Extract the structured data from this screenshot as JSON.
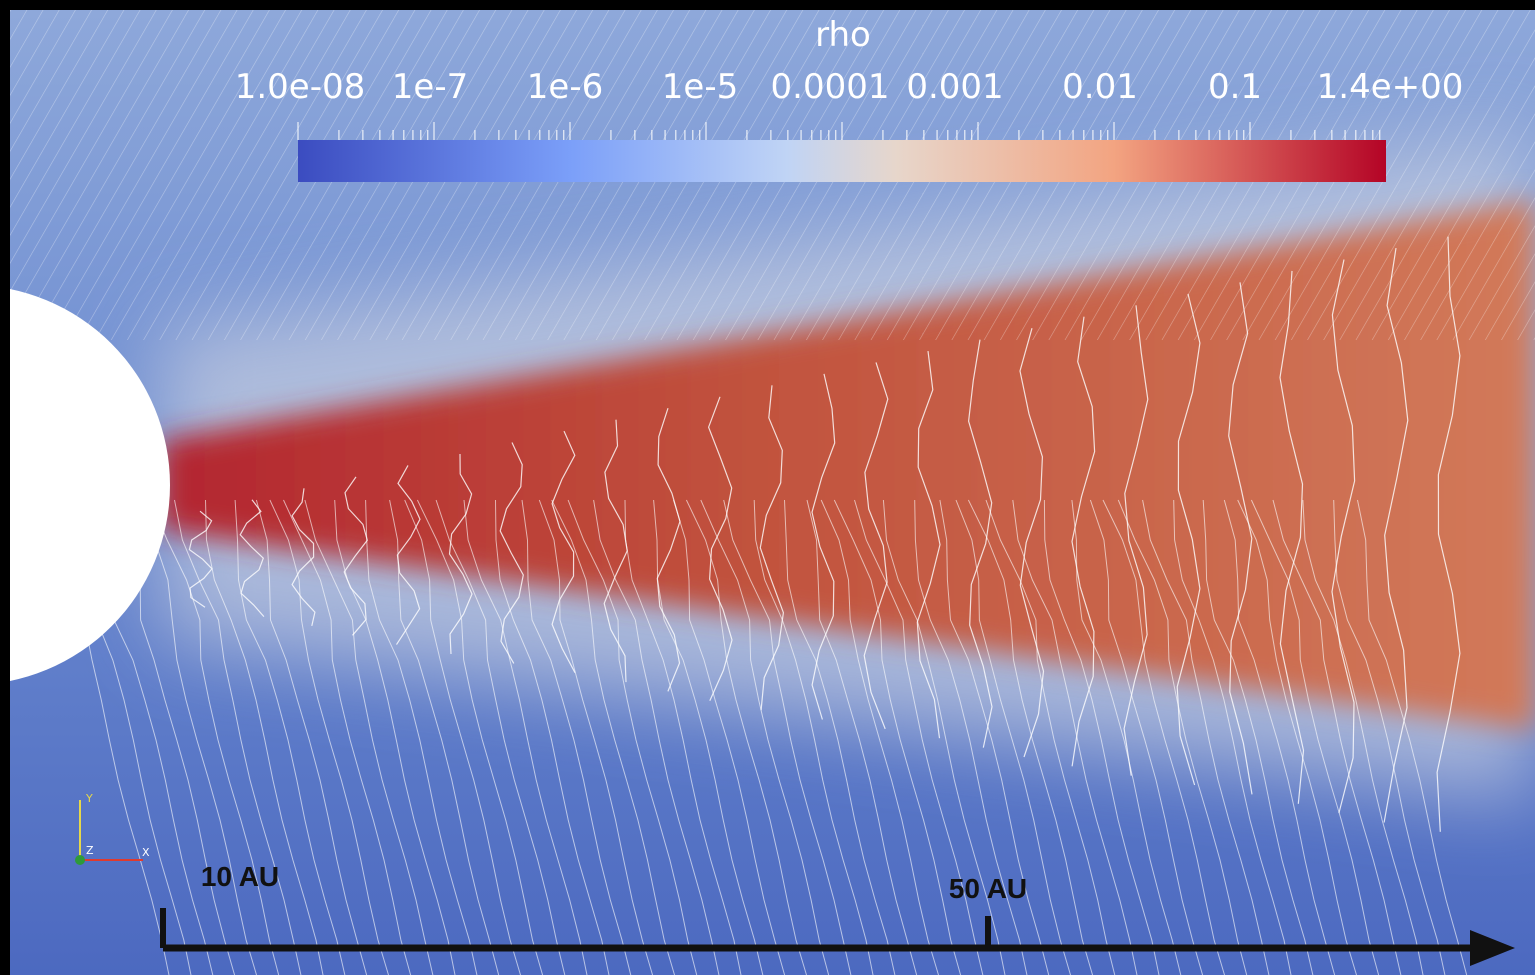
{
  "colorbar": {
    "title": "rho",
    "labels": [
      "1.0e-08",
      "1e-7",
      "1e-6",
      "1e-5",
      "0.0001",
      "0.001",
      "0.01",
      "0.1",
      "1.4e+00"
    ]
  },
  "scale_bar": {
    "labels": [
      "10 AU",
      "50 AU"
    ]
  },
  "axes": {
    "labels": [
      "Y",
      "Z",
      "X"
    ]
  }
}
